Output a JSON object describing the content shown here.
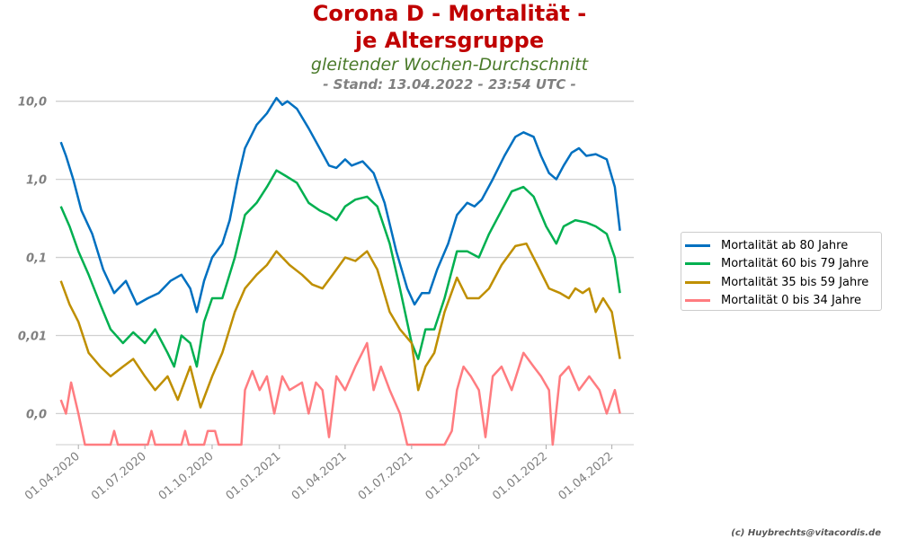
{
  "header": {
    "title_line1": "Corona D - Mortalität -",
    "title_line2": "je Altersgruppe",
    "subtitle": "gleitender Wochen-Durchschnitt",
    "stand": "- Stand: 13.04.2022 - 23:54 UTC -"
  },
  "footer": {
    "copyright": "(c) Huybrechts@vitacordis.de"
  },
  "colors": {
    "title": "#c00000",
    "subtitle": "#4a7a2a",
    "stand": "#808080",
    "grid": "#d0d0d0",
    "axis_text": "#808080"
  },
  "chart_data": {
    "type": "line",
    "y_scale": "log",
    "ylim": [
      0.0004,
      14
    ],
    "y_ticks": [
      {
        "value": 0.001,
        "label": "0,0"
      },
      {
        "value": 0.01,
        "label": "0,01"
      },
      {
        "value": 0.1,
        "label": "0,1"
      },
      {
        "value": 1,
        "label": "1,0"
      },
      {
        "value": 10,
        "label": "10,0"
      }
    ],
    "x_range": [
      "2020-03-01",
      "2022-05-01"
    ],
    "x_ticks": [
      {
        "date": "2020-04-01",
        "label": "01.04.2020"
      },
      {
        "date": "2020-07-01",
        "label": "01.07.2020"
      },
      {
        "date": "2020-10-01",
        "label": "01.10.2020"
      },
      {
        "date": "2021-01-01",
        "label": "01.01.2021"
      },
      {
        "date": "2021-04-01",
        "label": "01.04.2021"
      },
      {
        "date": "2021-07-01",
        "label": "01.07.2021"
      },
      {
        "date": "2021-10-01",
        "label": "01.10.2021"
      },
      {
        "date": "2022-01-01",
        "label": "01.01.2022"
      },
      {
        "date": "2022-04-01",
        "label": "01.04.2022"
      }
    ],
    "grid": "horizontal",
    "legend_position": "right",
    "series": [
      {
        "name": "Mortalität ab 80 Jahre",
        "color": "#0070c0",
        "points": [
          [
            "2020-03-08",
            3.0
          ],
          [
            "2020-03-15",
            2.0
          ],
          [
            "2020-03-25",
            1.0
          ],
          [
            "2020-04-05",
            0.4
          ],
          [
            "2020-04-20",
            0.2
          ],
          [
            "2020-05-05",
            0.07
          ],
          [
            "2020-05-20",
            0.035
          ],
          [
            "2020-06-05",
            0.05
          ],
          [
            "2020-06-20",
            0.025
          ],
          [
            "2020-07-05",
            0.03
          ],
          [
            "2020-07-20",
            0.035
          ],
          [
            "2020-08-05",
            0.05
          ],
          [
            "2020-08-20",
            0.06
          ],
          [
            "2020-09-01",
            0.04
          ],
          [
            "2020-09-10",
            0.02
          ],
          [
            "2020-09-20",
            0.05
          ],
          [
            "2020-10-01",
            0.1
          ],
          [
            "2020-10-15",
            0.15
          ],
          [
            "2020-10-25",
            0.3
          ],
          [
            "2020-11-05",
            1.0
          ],
          [
            "2020-11-15",
            2.5
          ],
          [
            "2020-12-01",
            5.0
          ],
          [
            "2020-12-15",
            7.0
          ],
          [
            "2020-12-28",
            11.0
          ],
          [
            "2021-01-05",
            9.0
          ],
          [
            "2021-01-12",
            10.0
          ],
          [
            "2021-01-25",
            8.0
          ],
          [
            "2021-02-10",
            4.5
          ],
          [
            "2021-02-25",
            2.5
          ],
          [
            "2021-03-10",
            1.5
          ],
          [
            "2021-03-20",
            1.4
          ],
          [
            "2021-04-01",
            1.8
          ],
          [
            "2021-04-10",
            1.5
          ],
          [
            "2021-04-25",
            1.7
          ],
          [
            "2021-05-10",
            1.2
          ],
          [
            "2021-05-25",
            0.5
          ],
          [
            "2021-06-10",
            0.12
          ],
          [
            "2021-06-25",
            0.04
          ],
          [
            "2021-07-05",
            0.025
          ],
          [
            "2021-07-15",
            0.035
          ],
          [
            "2021-07-25",
            0.035
          ],
          [
            "2021-08-05",
            0.07
          ],
          [
            "2021-08-20",
            0.15
          ],
          [
            "2021-09-01",
            0.35
          ],
          [
            "2021-09-15",
            0.5
          ],
          [
            "2021-09-25",
            0.45
          ],
          [
            "2021-10-05",
            0.55
          ],
          [
            "2021-10-20",
            1.0
          ],
          [
            "2021-11-05",
            2.0
          ],
          [
            "2021-11-20",
            3.5
          ],
          [
            "2021-12-01",
            4.0
          ],
          [
            "2021-12-15",
            3.5
          ],
          [
            "2021-12-25",
            2.0
          ],
          [
            "2022-01-05",
            1.2
          ],
          [
            "2022-01-15",
            1.0
          ],
          [
            "2022-01-25",
            1.5
          ],
          [
            "2022-02-05",
            2.2
          ],
          [
            "2022-02-15",
            2.5
          ],
          [
            "2022-02-25",
            2.0
          ],
          [
            "2022-03-10",
            2.1
          ],
          [
            "2022-03-25",
            1.8
          ],
          [
            "2022-04-05",
            0.8
          ],
          [
            "2022-04-12",
            0.22
          ]
        ]
      },
      {
        "name": "Mortalität 60 bis 79 Jahre",
        "color": "#00b050",
        "points": [
          [
            "2020-03-08",
            0.45
          ],
          [
            "2020-03-20",
            0.25
          ],
          [
            "2020-04-01",
            0.12
          ],
          [
            "2020-04-15",
            0.06
          ],
          [
            "2020-05-01",
            0.025
          ],
          [
            "2020-05-15",
            0.012
          ],
          [
            "2020-06-01",
            0.008
          ],
          [
            "2020-06-15",
            0.011
          ],
          [
            "2020-07-01",
            0.008
          ],
          [
            "2020-07-15",
            0.012
          ],
          [
            "2020-08-01",
            0.006
          ],
          [
            "2020-08-10",
            0.004
          ],
          [
            "2020-08-20",
            0.01
          ],
          [
            "2020-09-01",
            0.008
          ],
          [
            "2020-09-10",
            0.004
          ],
          [
            "2020-09-20",
            0.015
          ],
          [
            "2020-10-01",
            0.03
          ],
          [
            "2020-10-15",
            0.03
          ],
          [
            "2020-11-01",
            0.1
          ],
          [
            "2020-11-15",
            0.35
          ],
          [
            "2020-12-01",
            0.5
          ],
          [
            "2020-12-15",
            0.8
          ],
          [
            "2020-12-28",
            1.3
          ],
          [
            "2021-01-10",
            1.1
          ],
          [
            "2021-01-25",
            0.9
          ],
          [
            "2021-02-10",
            0.5
          ],
          [
            "2021-02-25",
            0.4
          ],
          [
            "2021-03-10",
            0.35
          ],
          [
            "2021-03-20",
            0.3
          ],
          [
            "2021-04-01",
            0.45
          ],
          [
            "2021-04-15",
            0.55
          ],
          [
            "2021-05-01",
            0.6
          ],
          [
            "2021-05-15",
            0.45
          ],
          [
            "2021-06-01",
            0.15
          ],
          [
            "2021-06-15",
            0.04
          ],
          [
            "2021-07-01",
            0.008
          ],
          [
            "2021-07-10",
            0.005
          ],
          [
            "2021-07-20",
            0.012
          ],
          [
            "2021-08-01",
            0.012
          ],
          [
            "2021-08-15",
            0.03
          ],
          [
            "2021-09-01",
            0.12
          ],
          [
            "2021-09-15",
            0.12
          ],
          [
            "2021-10-01",
            0.1
          ],
          [
            "2021-10-15",
            0.2
          ],
          [
            "2021-11-01",
            0.4
          ],
          [
            "2021-11-15",
            0.7
          ],
          [
            "2021-12-01",
            0.8
          ],
          [
            "2021-12-15",
            0.6
          ],
          [
            "2022-01-01",
            0.25
          ],
          [
            "2022-01-15",
            0.15
          ],
          [
            "2022-01-25",
            0.25
          ],
          [
            "2022-02-10",
            0.3
          ],
          [
            "2022-02-25",
            0.28
          ],
          [
            "2022-03-10",
            0.25
          ],
          [
            "2022-03-25",
            0.2
          ],
          [
            "2022-04-05",
            0.1
          ],
          [
            "2022-04-12",
            0.035
          ]
        ]
      },
      {
        "name": "Mortalität 35 bis 59 Jahre",
        "color": "#bf8f00",
        "points": [
          [
            "2020-03-08",
            0.05
          ],
          [
            "2020-03-20",
            0.025
          ],
          [
            "2020-04-01",
            0.015
          ],
          [
            "2020-04-15",
            0.006
          ],
          [
            "2020-05-01",
            0.004
          ],
          [
            "2020-05-15",
            0.003
          ],
          [
            "2020-06-01",
            0.004
          ],
          [
            "2020-06-15",
            0.005
          ],
          [
            "2020-07-01",
            0.003
          ],
          [
            "2020-07-15",
            0.002
          ],
          [
            "2020-08-01",
            0.003
          ],
          [
            "2020-08-15",
            0.0015
          ],
          [
            "2020-09-01",
            0.004
          ],
          [
            "2020-09-15",
            0.0012
          ],
          [
            "2020-10-01",
            0.003
          ],
          [
            "2020-10-15",
            0.006
          ],
          [
            "2020-11-01",
            0.02
          ],
          [
            "2020-11-15",
            0.04
          ],
          [
            "2020-12-01",
            0.06
          ],
          [
            "2020-12-15",
            0.08
          ],
          [
            "2020-12-28",
            0.12
          ],
          [
            "2021-01-15",
            0.08
          ],
          [
            "2021-02-01",
            0.06
          ],
          [
            "2021-02-15",
            0.045
          ],
          [
            "2021-03-01",
            0.04
          ],
          [
            "2021-03-15",
            0.06
          ],
          [
            "2021-04-01",
            0.1
          ],
          [
            "2021-04-15",
            0.09
          ],
          [
            "2021-05-01",
            0.12
          ],
          [
            "2021-05-15",
            0.07
          ],
          [
            "2021-06-01",
            0.02
          ],
          [
            "2021-06-15",
            0.012
          ],
          [
            "2021-07-01",
            0.008
          ],
          [
            "2021-07-10",
            0.002
          ],
          [
            "2021-07-20",
            0.004
          ],
          [
            "2021-08-01",
            0.006
          ],
          [
            "2021-08-15",
            0.02
          ],
          [
            "2021-09-01",
            0.055
          ],
          [
            "2021-09-15",
            0.03
          ],
          [
            "2021-10-01",
            0.03
          ],
          [
            "2021-10-15",
            0.04
          ],
          [
            "2021-11-01",
            0.08
          ],
          [
            "2021-11-20",
            0.14
          ],
          [
            "2021-12-05",
            0.15
          ],
          [
            "2021-12-20",
            0.08
          ],
          [
            "2022-01-05",
            0.04
          ],
          [
            "2022-01-20",
            0.035
          ],
          [
            "2022-02-01",
            0.03
          ],
          [
            "2022-02-10",
            0.04
          ],
          [
            "2022-02-20",
            0.035
          ],
          [
            "2022-03-01",
            0.04
          ],
          [
            "2022-03-10",
            0.02
          ],
          [
            "2022-03-20",
            0.03
          ],
          [
            "2022-04-01",
            0.02
          ],
          [
            "2022-04-12",
            0.005
          ]
        ]
      },
      {
        "name": "Mortalität 0 bis 34 Jahre",
        "color": "#ff7c80",
        "points": [
          [
            "2020-03-08",
            0.0015
          ],
          [
            "2020-03-15",
            0.001
          ],
          [
            "2020-03-22",
            0.0025
          ],
          [
            "2020-04-01",
            0.001
          ],
          [
            "2020-04-10",
            0.0004
          ],
          [
            "2020-05-15",
            0.0004
          ],
          [
            "2020-05-20",
            0.0006
          ],
          [
            "2020-05-25",
            0.0004
          ],
          [
            "2020-07-05",
            0.0004
          ],
          [
            "2020-07-10",
            0.0006
          ],
          [
            "2020-07-15",
            0.0004
          ],
          [
            "2020-08-20",
            0.0004
          ],
          [
            "2020-08-25",
            0.0006
          ],
          [
            "2020-08-30",
            0.0004
          ],
          [
            "2020-09-20",
            0.0004
          ],
          [
            "2020-09-25",
            0.0006
          ],
          [
            "2020-10-05",
            0.0006
          ],
          [
            "2020-10-10",
            0.0004
          ],
          [
            "2020-11-10",
            0.0004
          ],
          [
            "2020-11-15",
            0.002
          ],
          [
            "2020-11-25",
            0.0035
          ],
          [
            "2020-12-05",
            0.002
          ],
          [
            "2020-12-15",
            0.003
          ],
          [
            "2020-12-25",
            0.001
          ],
          [
            "2021-01-05",
            0.003
          ],
          [
            "2021-01-15",
            0.002
          ],
          [
            "2021-02-01",
            0.0025
          ],
          [
            "2021-02-10",
            0.001
          ],
          [
            "2021-02-20",
            0.0025
          ],
          [
            "2021-03-01",
            0.002
          ],
          [
            "2021-03-10",
            0.0005
          ],
          [
            "2021-03-20",
            0.003
          ],
          [
            "2021-04-01",
            0.002
          ],
          [
            "2021-04-15",
            0.004
          ],
          [
            "2021-05-01",
            0.008
          ],
          [
            "2021-05-10",
            0.002
          ],
          [
            "2021-05-20",
            0.004
          ],
          [
            "2021-06-01",
            0.002
          ],
          [
            "2021-06-15",
            0.001
          ],
          [
            "2021-06-25",
            0.0004
          ],
          [
            "2021-08-15",
            0.0004
          ],
          [
            "2021-08-25",
            0.0006
          ],
          [
            "2021-09-01",
            0.002
          ],
          [
            "2021-09-10",
            0.004
          ],
          [
            "2021-09-20",
            0.003
          ],
          [
            "2021-10-01",
            0.002
          ],
          [
            "2021-10-10",
            0.0005
          ],
          [
            "2021-10-20",
            0.003
          ],
          [
            "2021-11-01",
            0.004
          ],
          [
            "2021-11-15",
            0.002
          ],
          [
            "2021-12-01",
            0.006
          ],
          [
            "2021-12-15",
            0.004
          ],
          [
            "2021-12-25",
            0.003
          ],
          [
            "2022-01-05",
            0.002
          ],
          [
            "2022-01-10",
            0.0004
          ],
          [
            "2022-01-20",
            0.003
          ],
          [
            "2022-02-01",
            0.004
          ],
          [
            "2022-02-15",
            0.002
          ],
          [
            "2022-03-01",
            0.003
          ],
          [
            "2022-03-15",
            0.002
          ],
          [
            "2022-03-25",
            0.001
          ],
          [
            "2022-04-05",
            0.002
          ],
          [
            "2022-04-12",
            0.001
          ]
        ]
      }
    ]
  }
}
